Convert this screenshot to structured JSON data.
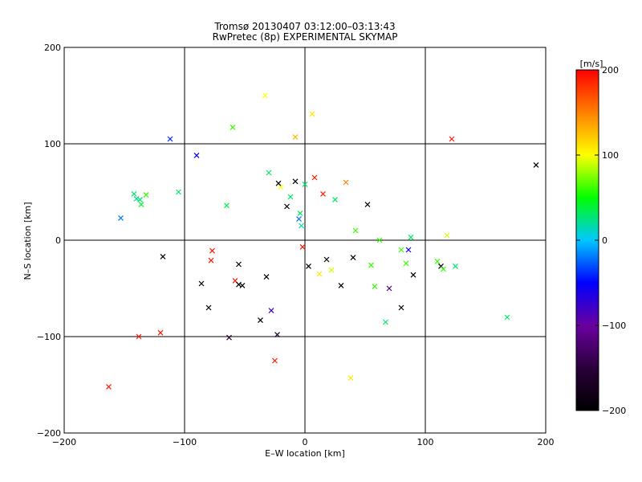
{
  "chart_data": {
    "type": "scatter",
    "title": "Tromsø 20130407 03:12:00–03:13:43",
    "subtitle": "RwPretec (8p) EXPERIMENTAL SKYMAP",
    "xlabel": "E–W location [km]",
    "ylabel": "N–S location [km]",
    "xlim": [
      -200,
      200
    ],
    "ylim": [
      -200,
      200
    ],
    "grid": true,
    "x_ticks": [
      -200,
      -100,
      0,
      100,
      200
    ],
    "y_ticks": [
      -200,
      -100,
      0,
      100,
      200
    ],
    "x_tick_labels": [
      "−200",
      "−100",
      "0",
      "100",
      "200"
    ],
    "y_tick_labels": [
      "−200",
      "−100",
      "0",
      "100",
      "200"
    ],
    "colorbar": {
      "label": "[m/s]",
      "range": [
        -200,
        200
      ],
      "ticks": [
        200,
        100,
        0,
        -100,
        -200
      ],
      "tick_labels": [
        "200",
        "100",
        "0",
        "−100",
        "−200"
      ],
      "colormap": [
        "#000000",
        "#2a003a",
        "#6a00a0",
        "#0000ff",
        "#00c8ff",
        "#00ff00",
        "#ffff00",
        "#ff8000",
        "#ff0000"
      ]
    },
    "points": [
      {
        "x": -163,
        "y": -152,
        "v": 190,
        "m": "x"
      },
      {
        "x": -153,
        "y": 23,
        "v": -20,
        "m": "x"
      },
      {
        "x": -142,
        "y": 48,
        "v": 30,
        "m": "x"
      },
      {
        "x": -140,
        "y": 43,
        "v": 20,
        "m": "x"
      },
      {
        "x": -137,
        "y": 42,
        "v": 30,
        "m": "x"
      },
      {
        "x": -136,
        "y": 37,
        "v": 40,
        "m": "x"
      },
      {
        "x": -132,
        "y": 47,
        "v": 60,
        "m": "x"
      },
      {
        "x": -138,
        "y": -100,
        "v": 190,
        "m": "x"
      },
      {
        "x": -120,
        "y": -96,
        "v": 190,
        "m": "x"
      },
      {
        "x": -118,
        "y": -17,
        "v": -200,
        "m": "x"
      },
      {
        "x": -112,
        "y": 105,
        "v": -40,
        "m": "x"
      },
      {
        "x": -105,
        "y": 50,
        "v": 30,
        "m": "x"
      },
      {
        "x": -90,
        "y": 88,
        "v": -50,
        "m": "x"
      },
      {
        "x": -86,
        "y": -45,
        "v": -200,
        "m": "x"
      },
      {
        "x": -80,
        "y": -70,
        "v": -200,
        "m": "x"
      },
      {
        "x": -78,
        "y": -21,
        "v": 190,
        "m": "x"
      },
      {
        "x": -77,
        "y": -11,
        "v": 190,
        "m": "x"
      },
      {
        "x": -65,
        "y": 36,
        "v": 40,
        "m": "x"
      },
      {
        "x": -60,
        "y": 117,
        "v": 60,
        "m": "x"
      },
      {
        "x": -58,
        "y": -42,
        "v": 190,
        "m": "x"
      },
      {
        "x": -55,
        "y": -46,
        "v": -200,
        "m": "x"
      },
      {
        "x": -52,
        "y": -47,
        "v": -200,
        "m": "x"
      },
      {
        "x": -63,
        "y": -101,
        "v": -160,
        "m": "x"
      },
      {
        "x": -55,
        "y": -25,
        "v": -200,
        "m": "x"
      },
      {
        "x": -37,
        "y": -83,
        "v": -200,
        "m": "x"
      },
      {
        "x": -33,
        "y": 150,
        "v": 100,
        "m": "x"
      },
      {
        "x": -32,
        "y": -38,
        "v": -200,
        "m": "x"
      },
      {
        "x": -30,
        "y": 70,
        "v": 30,
        "m": "x"
      },
      {
        "x": -28,
        "y": -73,
        "v": -80,
        "m": "x"
      },
      {
        "x": -25,
        "y": -125,
        "v": 190,
        "m": "x"
      },
      {
        "x": -23,
        "y": -98,
        "v": -160,
        "m": "x"
      },
      {
        "x": -22,
        "y": 59,
        "v": -200,
        "m": "x"
      },
      {
        "x": -20,
        "y": 55,
        "v": 100,
        "m": "x"
      },
      {
        "x": -15,
        "y": 35,
        "v": -200,
        "m": "x"
      },
      {
        "x": -12,
        "y": 45,
        "v": 30,
        "m": "x"
      },
      {
        "x": -8,
        "y": 107,
        "v": 130,
        "m": "x"
      },
      {
        "x": -8,
        "y": 61,
        "v": -200,
        "m": "x"
      },
      {
        "x": -5,
        "y": 22,
        "v": -20,
        "m": "x"
      },
      {
        "x": -4,
        "y": 28,
        "v": 30,
        "m": "x"
      },
      {
        "x": -3,
        "y": 15,
        "v": 20,
        "m": "x"
      },
      {
        "x": -2,
        "y": -7,
        "v": 190,
        "m": "x"
      },
      {
        "x": 0,
        "y": 58,
        "v": 30,
        "m": "x"
      },
      {
        "x": 3,
        "y": -27,
        "v": -200,
        "m": "x"
      },
      {
        "x": 6,
        "y": 131,
        "v": 110,
        "m": "x"
      },
      {
        "x": 8,
        "y": 65,
        "v": 190,
        "m": "x"
      },
      {
        "x": 12,
        "y": -35,
        "v": 110,
        "m": "x"
      },
      {
        "x": 15,
        "y": 48,
        "v": 190,
        "m": "x"
      },
      {
        "x": 18,
        "y": -20,
        "v": -200,
        "m": "x"
      },
      {
        "x": 22,
        "y": -31,
        "v": 90,
        "m": "x"
      },
      {
        "x": 25,
        "y": 42,
        "v": 30,
        "m": "x"
      },
      {
        "x": 30,
        "y": -47,
        "v": -200,
        "m": "x"
      },
      {
        "x": 34,
        "y": 60,
        "v": 150,
        "m": "x"
      },
      {
        "x": 38,
        "y": -143,
        "v": 110,
        "m": "x"
      },
      {
        "x": 40,
        "y": -18,
        "v": -200,
        "m": "x"
      },
      {
        "x": 42,
        "y": 10,
        "v": 60,
        "m": "x"
      },
      {
        "x": 52,
        "y": 37,
        "v": -200,
        "m": "x"
      },
      {
        "x": 55,
        "y": -26,
        "v": 60,
        "m": "x"
      },
      {
        "x": 58,
        "y": -48,
        "v": 60,
        "m": "x"
      },
      {
        "x": 62,
        "y": 0,
        "v": 60,
        "m": "x"
      },
      {
        "x": 67,
        "y": -85,
        "v": 30,
        "m": "x"
      },
      {
        "x": 70,
        "y": -50,
        "v": -120,
        "m": "x"
      },
      {
        "x": 80,
        "y": -10,
        "v": 60,
        "m": "x"
      },
      {
        "x": 80,
        "y": -70,
        "v": -200,
        "m": "x"
      },
      {
        "x": 84,
        "y": -24,
        "v": 60,
        "m": "x"
      },
      {
        "x": 86,
        "y": -10,
        "v": -60,
        "m": "x"
      },
      {
        "x": 88,
        "y": 3,
        "v": 30,
        "m": "x"
      },
      {
        "x": 90,
        "y": -36,
        "v": -200,
        "m": "x"
      },
      {
        "x": 110,
        "y": -22,
        "v": 60,
        "m": "x"
      },
      {
        "x": 113,
        "y": -27,
        "v": -200,
        "m": "x"
      },
      {
        "x": 115,
        "y": -30,
        "v": 60,
        "m": "x"
      },
      {
        "x": 118,
        "y": 5,
        "v": 90,
        "m": "x"
      },
      {
        "x": 122,
        "y": 105,
        "v": 190,
        "m": "x"
      },
      {
        "x": 125,
        "y": -27,
        "v": 30,
        "m": "x"
      },
      {
        "x": 168,
        "y": -80,
        "v": 30,
        "m": "x"
      },
      {
        "x": 192,
        "y": 78,
        "v": -200,
        "m": "x"
      }
    ]
  }
}
